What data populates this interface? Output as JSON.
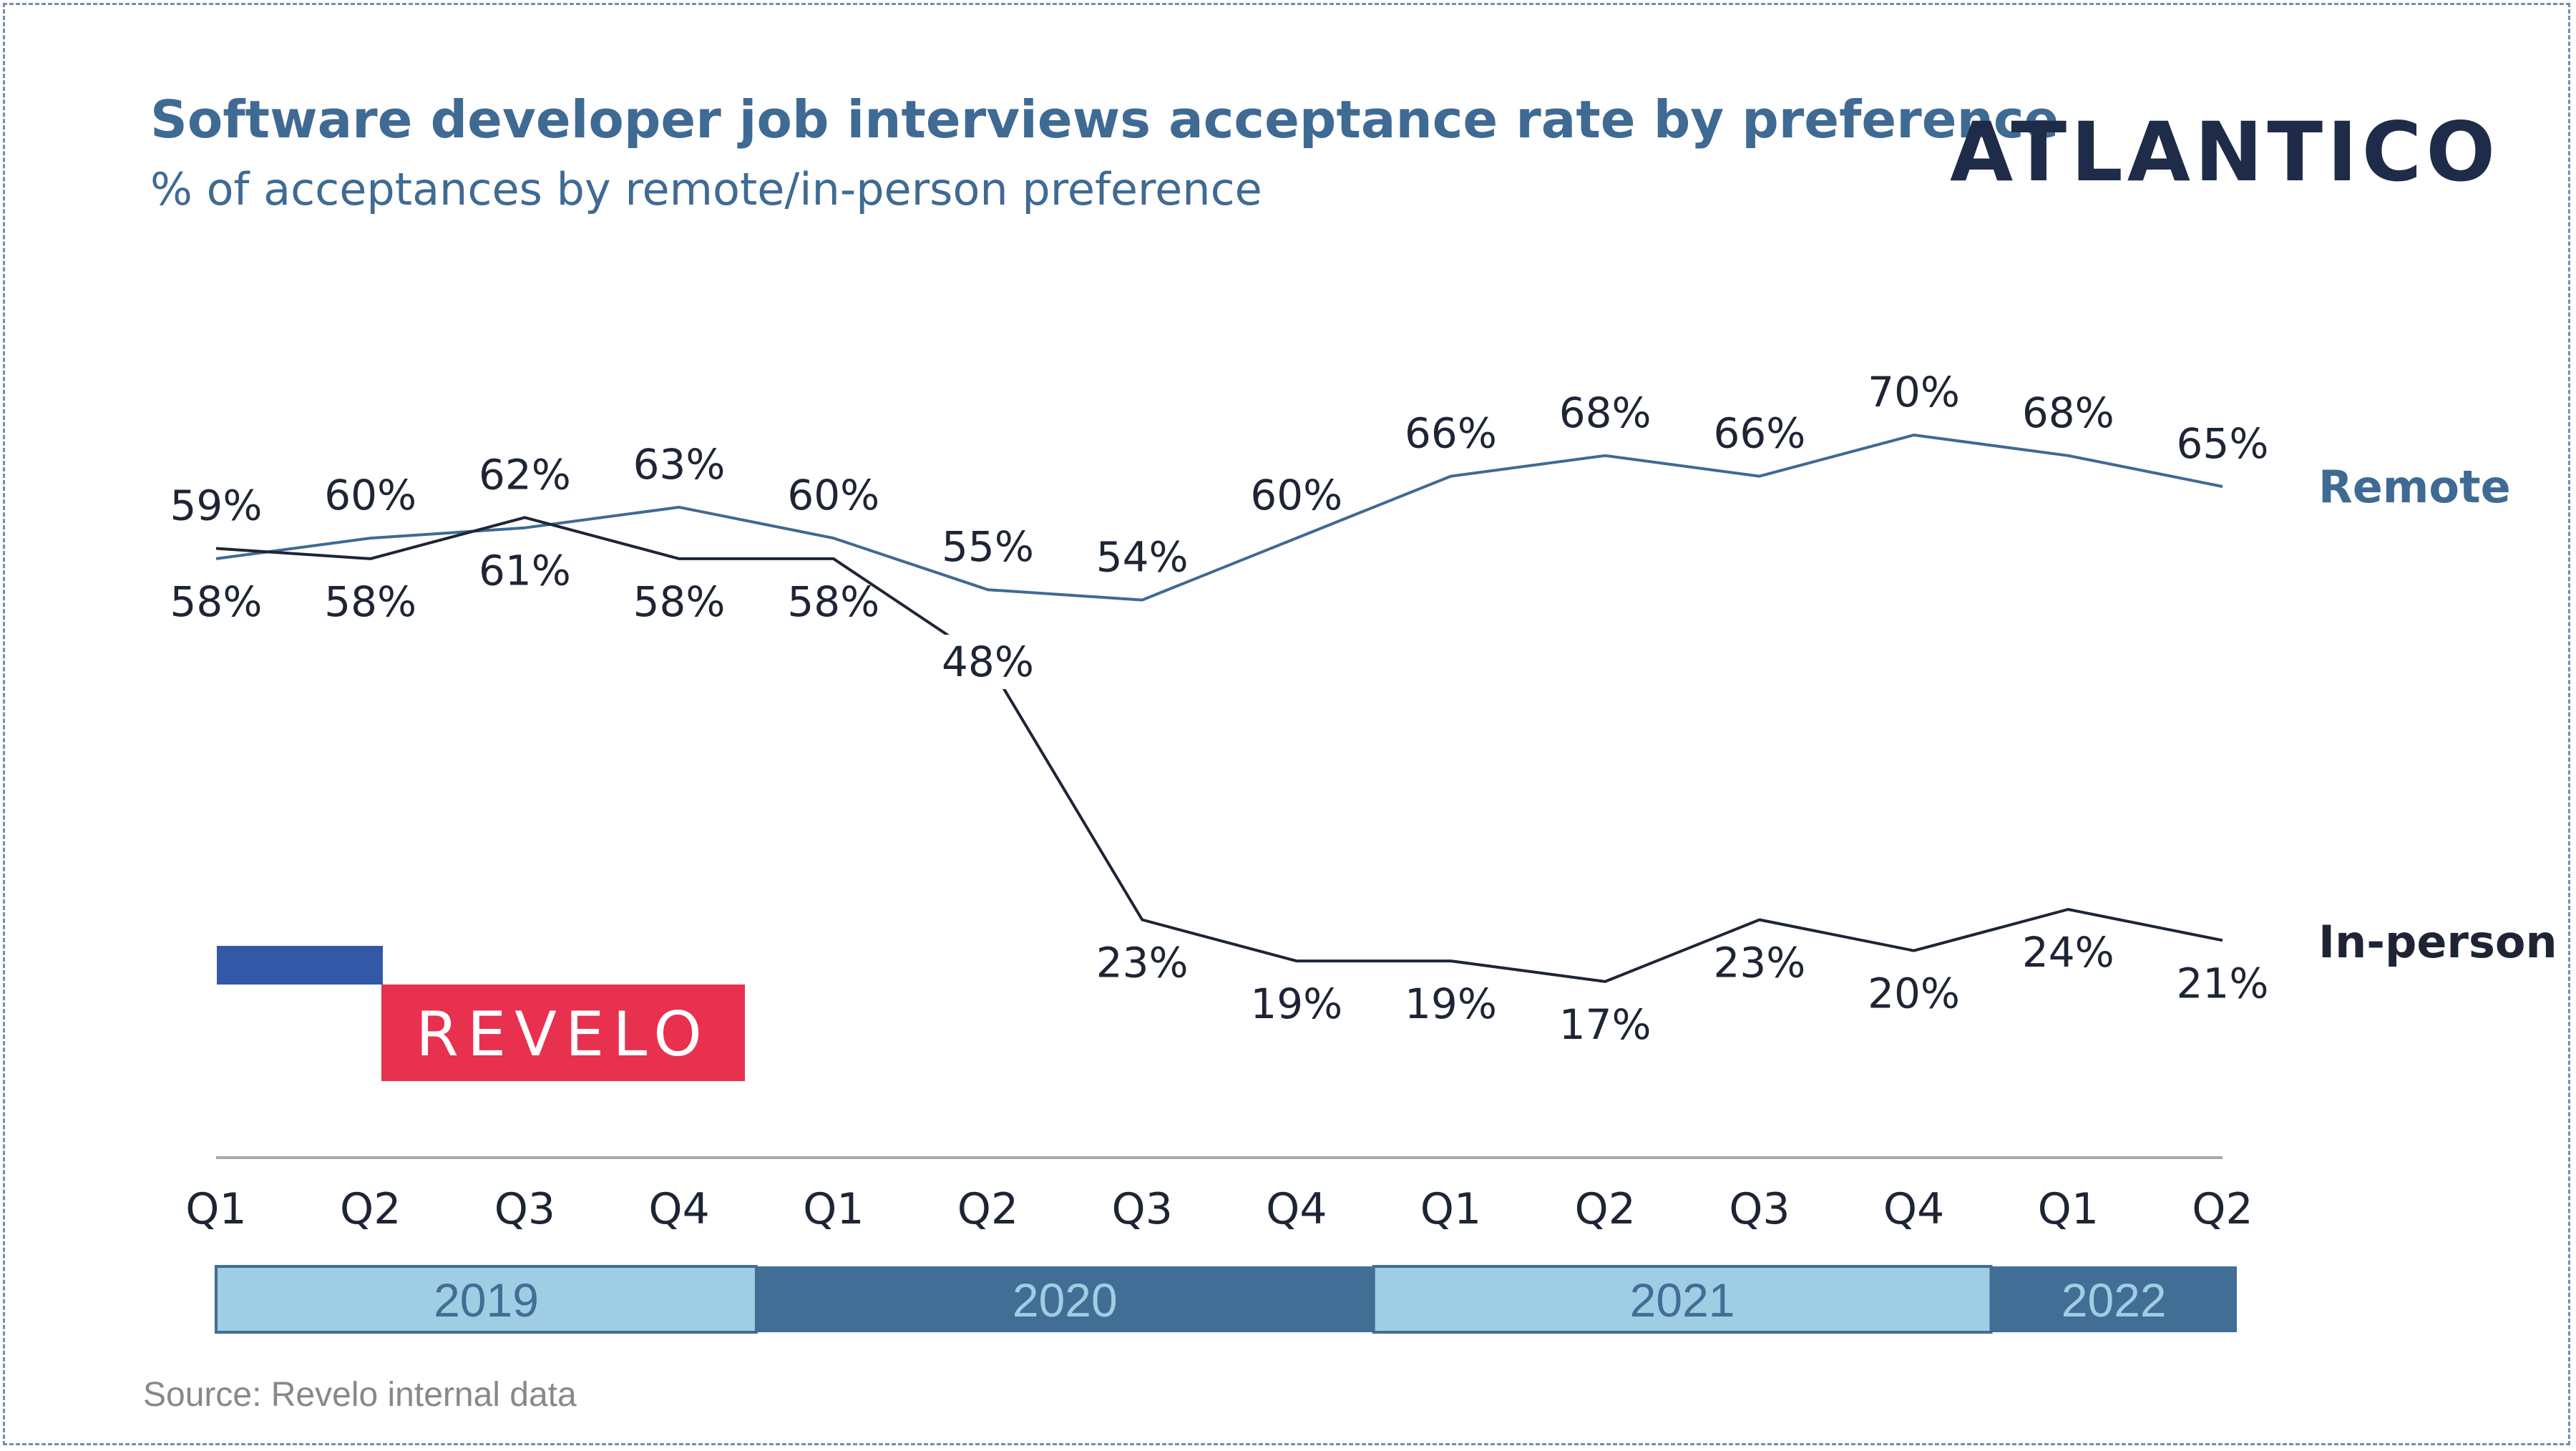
{
  "title": "Software developer job interviews acceptance rate by preference",
  "subtitle": "% of acceptances by remote/in-person preference",
  "source": "Source: Revelo internal data",
  "logos": {
    "atlantico": "ATLANTICO",
    "revelo": "REVELO"
  },
  "colors": {
    "remote": "#3f6a93",
    "inperson": "#1d2535",
    "year_light": "#9fcde4",
    "year_dark": "#426d95",
    "revelo_red": "#e8304f",
    "revelo_blue": "#3358a8"
  },
  "chart_data": {
    "type": "line",
    "title": "Software developer job interviews acceptance rate by preference",
    "subtitle": "% of acceptances by remote/in-person preference",
    "xlabel": "",
    "ylabel": "",
    "ylim": [
      0,
      100
    ],
    "categories": [
      "Q1",
      "Q2",
      "Q3",
      "Q4",
      "Q1",
      "Q2",
      "Q3",
      "Q4",
      "Q1",
      "Q2",
      "Q3",
      "Q4",
      "Q1",
      "Q2"
    ],
    "years": [
      {
        "label": "2019",
        "start": 0,
        "end": 3,
        "style": "light"
      },
      {
        "label": "2020",
        "start": 4,
        "end": 7,
        "style": "dark"
      },
      {
        "label": "2021",
        "start": 8,
        "end": 11,
        "style": "light"
      },
      {
        "label": "2022",
        "start": 12,
        "end": 13,
        "style": "dark"
      }
    ],
    "series": [
      {
        "name": "Remote",
        "values": [
          58,
          60,
          61,
          63,
          60,
          55,
          54,
          60,
          66,
          68,
          66,
          70,
          68,
          65
        ],
        "labels": [
          "58%",
          "60%",
          "61%",
          "63%",
          "60%",
          "55%",
          "54%",
          "60%",
          "66%",
          "68%",
          "66%",
          "70%",
          "68%",
          "65%"
        ]
      },
      {
        "name": "In-person",
        "values": [
          59,
          58,
          62,
          58,
          58,
          48,
          23,
          19,
          19,
          17,
          23,
          20,
          24,
          21
        ],
        "labels": [
          "59%",
          "58%",
          "62%",
          "58%",
          "58%",
          "48%",
          "23%",
          "19%",
          "19%",
          "17%",
          "23%",
          "20%",
          "24%",
          "21%"
        ]
      }
    ],
    "grid": false,
    "legend": "right, inline at line ends"
  }
}
